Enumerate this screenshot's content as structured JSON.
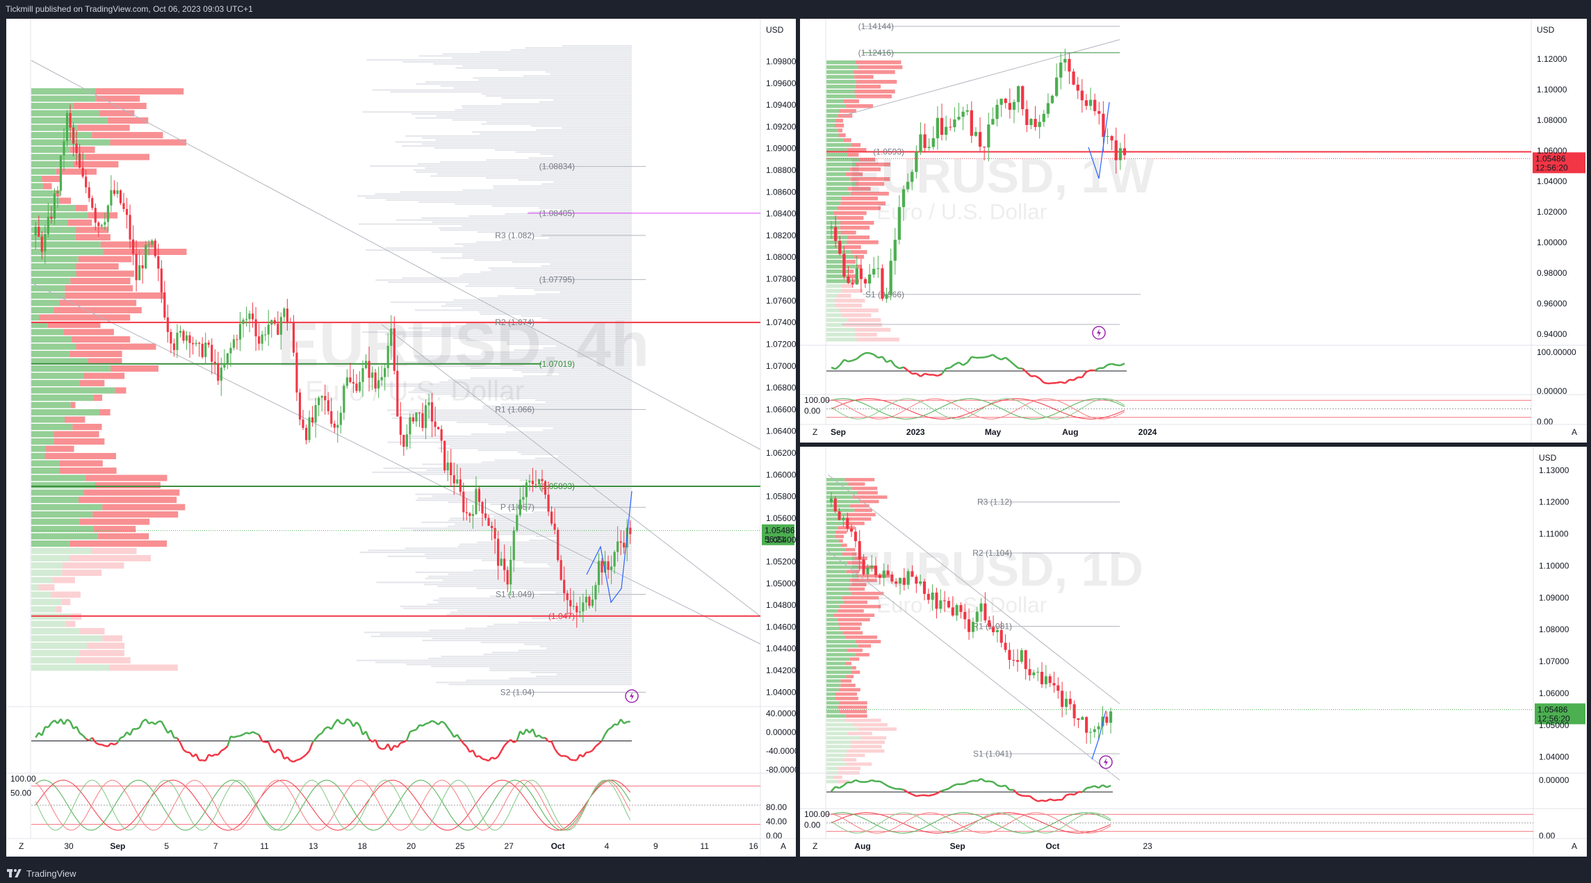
{
  "header": {
    "published": "Tickmill published on TradingView.com, Oct 06, 2023 09:03 UTC+1"
  },
  "footer": {
    "brand": "TradingView"
  },
  "colors": {
    "up": "#4caf50",
    "down": "#f23645",
    "volume_up": "#81c784",
    "volume_down": "#f77c80",
    "pivot": "#787b86",
    "orange": "#ff9800",
    "magenta": "#e040fb",
    "blue": "#2962ff",
    "grid": "#f0f3fa"
  },
  "main": {
    "watermark": "EURUSD, 4h",
    "watermark_sub": "Euro / U.S. Dollar",
    "currency": "USD",
    "price_ticks": [
      "1.09800",
      "1.09600",
      "1.09400",
      "1.09200",
      "1.09000",
      "1.08800",
      "1.08600",
      "1.08400",
      "1.08200",
      "1.08000",
      "1.07800",
      "1.07600",
      "1.07400",
      "1.07200",
      "1.07000",
      "1.06800",
      "1.06600",
      "1.06400",
      "1.06200",
      "1.06000",
      "1.05800",
      "1.05600",
      "1.05400",
      "1.05200",
      "1.05000",
      "1.04800",
      "1.04600",
      "1.04400",
      "1.04200",
      "1.04000"
    ],
    "last_price": "1.05486",
    "countdown": "56:21",
    "time_labels": [
      "30",
      "Sep",
      "5",
      "7",
      "11",
      "13",
      "18",
      "20",
      "25",
      "27",
      "Oct",
      "4",
      "9",
      "11",
      "16"
    ],
    "levels": [
      {
        "label": "(1.08834)"
      },
      {
        "label": "(1.08405)"
      },
      {
        "label": "R3 (1.082)"
      },
      {
        "label": "(1.07795)"
      },
      {
        "label": "R2 (1.074)"
      },
      {
        "label": "(1.07019)"
      },
      {
        "label": "R1 (1.066)"
      },
      {
        "label": "(1.05893)"
      },
      {
        "label": "P (1.057)"
      },
      {
        "label": "S1 (1.049)"
      },
      {
        "label": "(1.047)"
      },
      {
        "label": "S2 (1.04)"
      }
    ],
    "osc1_ticks": [
      "40.00000",
      "0.00000",
      "-40.00000",
      "-80.00000"
    ],
    "osc2_ticks": [
      "100.00",
      "50.00",
      "80.00",
      "40.00",
      "0.00"
    ],
    "axis_z": "Z",
    "axis_a": "A"
  },
  "weekly": {
    "watermark": "EURUSD, 1W",
    "watermark_sub": "Euro / U.S. Dollar",
    "currency": "USD",
    "price_ticks": [
      "1.12000",
      "1.10000",
      "1.08000",
      "1.06000",
      "1.04000",
      "1.02000",
      "1.00000",
      "0.98000",
      "0.96000",
      "0.94000"
    ],
    "last_price": "1.05486",
    "countdown": "12:56:20",
    "time_labels": [
      "Sep",
      "2023",
      "May",
      "Aug",
      "2024"
    ],
    "levels": [
      {
        "label": "(1.14144)"
      },
      {
        "label": "(1.12416)"
      },
      {
        "label": "(1.0593)"
      },
      {
        "label": "S1 (0.966)"
      }
    ],
    "osc1_ticks": [
      "100.00000",
      "0.00000"
    ],
    "osc2_ticks": [
      "100.00",
      "0.00",
      "0.00"
    ],
    "axis_z": "Z",
    "axis_a": "A"
  },
  "daily": {
    "watermark": "EURUSD, 1D",
    "watermark_sub": "Euro / U.S. Dollar",
    "currency": "USD",
    "price_ticks": [
      "1.13000",
      "1.12000",
      "1.11000",
      "1.10000",
      "1.09000",
      "1.08000",
      "1.07000",
      "1.06000",
      "1.05000",
      "1.04000"
    ],
    "last_price": "1.05486",
    "countdown": "12:56:20",
    "time_labels": [
      "Aug",
      "Sep",
      "Oct",
      "23"
    ],
    "levels": [
      {
        "label": "R3 (1.12)"
      },
      {
        "label": "R2 (1.104)"
      },
      {
        "label": "R1 (1.081)"
      },
      {
        "label": "S1 (1.041)"
      }
    ],
    "osc1_ticks": [
      "0.00000"
    ],
    "osc2_ticks": [
      "100.00",
      "0.00",
      "0.00"
    ],
    "axis_z": "Z",
    "axis_a": "A"
  },
  "chart_data": [
    {
      "type": "candlestick",
      "title": "EURUSD, 4h",
      "ylim": [
        1.039,
        1.0995
      ],
      "x_labels": [
        "30",
        "Sep",
        "5",
        "7",
        "11",
        "13",
        "18",
        "20",
        "25",
        "27",
        "Oct",
        "4",
        "9",
        "11",
        "16"
      ],
      "close_path": [
        1.082,
        1.081,
        1.084,
        1.087,
        1.093,
        1.09,
        1.087,
        1.086,
        1.083,
        1.084,
        1.086,
        1.085,
        1.083,
        1.078,
        1.08,
        1.081,
        1.078,
        1.074,
        1.072,
        1.073,
        1.073,
        1.071,
        1.072,
        1.07,
        1.069,
        1.071,
        1.073,
        1.074,
        1.075,
        1.072,
        1.074,
        1.073,
        1.075,
        1.074,
        1.066,
        1.064,
        1.065,
        1.067,
        1.066,
        1.064,
        1.069,
        1.068,
        1.069,
        1.07,
        1.068,
        1.07,
        1.073,
        1.064,
        1.063,
        1.066,
        1.065,
        1.066,
        1.064,
        1.061,
        1.06,
        1.058,
        1.056,
        1.058,
        1.057,
        1.055,
        1.052,
        1.05,
        1.055,
        1.058,
        1.059,
        1.06,
        1.058,
        1.056,
        1.051,
        1.048,
        1.047,
        1.048,
        1.049,
        1.052,
        1.051,
        1.053,
        1.054,
        1.055
      ],
      "levels": [
        1.08834,
        1.08405,
        1.082,
        1.07795,
        1.074,
        1.07019,
        1.066,
        1.05893,
        1.057,
        1.049,
        1.047,
        1.04
      ],
      "last": 1.05486
    },
    {
      "type": "candlestick",
      "title": "EURUSD, 1W",
      "ylim": [
        0.935,
        1.135
      ],
      "x_labels": [
        "Sep",
        "2023",
        "May",
        "Aug",
        "2024"
      ],
      "close_path": [
        1.01,
        0.99,
        0.97,
        0.98,
        0.97,
        0.99,
        0.96,
        1.0,
        1.03,
        1.05,
        1.07,
        1.06,
        1.08,
        1.07,
        1.08,
        1.09,
        1.07,
        1.06,
        1.08,
        1.1,
        1.09,
        1.1,
        1.08,
        1.07,
        1.09,
        1.1,
        1.12,
        1.11,
        1.1,
        1.09,
        1.08,
        1.07,
        1.06,
        1.055
      ],
      "levels": [
        1.14144,
        1.12416,
        1.0593,
        0.966
      ],
      "last": 1.05486
    },
    {
      "type": "candlestick",
      "title": "EURUSD, 1D",
      "ylim": [
        1.036,
        1.133
      ],
      "x_labels": [
        "Aug",
        "Sep",
        "Oct",
        "23"
      ],
      "close_path": [
        1.12,
        1.115,
        1.11,
        1.1,
        1.098,
        1.098,
        1.095,
        1.095,
        1.097,
        1.094,
        1.09,
        1.087,
        1.087,
        1.085,
        1.08,
        1.087,
        1.082,
        1.076,
        1.07,
        1.072,
        1.066,
        1.065,
        1.062,
        1.058,
        1.055,
        1.051,
        1.047,
        1.05,
        1.055
      ],
      "levels": [
        1.12,
        1.104,
        1.081,
        1.041
      ],
      "last": 1.05486
    }
  ]
}
